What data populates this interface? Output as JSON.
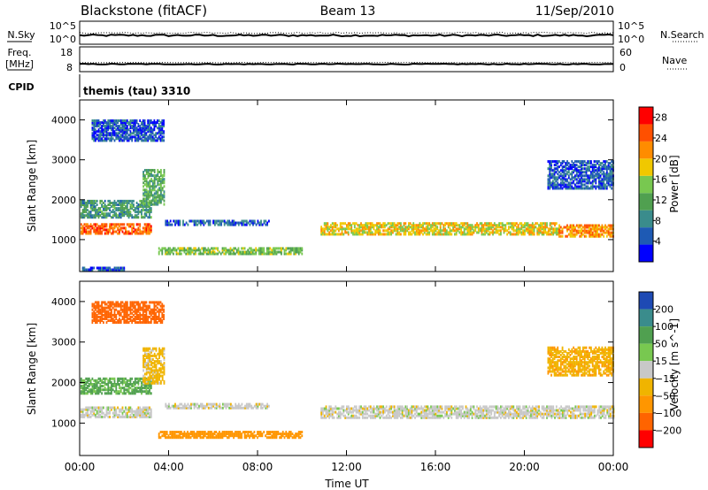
{
  "header": {
    "title": "Blackstone (fitACF)",
    "beam": "Beam 13",
    "date": "11/Sep/2010"
  },
  "noise_panel": {
    "left_label": "N.Sky",
    "right_label": "N.Search",
    "left_ticks": [
      "10^5",
      "10^0"
    ],
    "right_ticks": [
      "10^5",
      "10^0"
    ]
  },
  "freq_panel": {
    "left_label": "Freq.",
    "left_unit": "[MHz]",
    "right_label": "Nave",
    "left_ticks": [
      "18",
      "8"
    ],
    "right_ticks": [
      "60",
      "0"
    ]
  },
  "cpid": {
    "label": "CPID",
    "value": "themis (tau) 3310"
  },
  "colors": {
    "power": [
      "#0000ff",
      "#1e5ab4",
      "#3a8c8c",
      "#50a050",
      "#78c850",
      "#f0c800",
      "#ff8c00",
      "#ff5000",
      "#ff0000"
    ],
    "velocity_neg": [
      "#ff0000",
      "#ff6400",
      "#ff9600",
      "#f0b400",
      "#c8c8c8"
    ],
    "velocity_pos": [
      "#c8c8c8",
      "#78c850",
      "#50a050",
      "#3a8c8c",
      "#1e4ab4"
    ],
    "ground": "#b4b4b4"
  },
  "chart_data": [
    {
      "type": "heatmap",
      "parameter": "power",
      "ylabel": "Slant Range [km]",
      "ylim": [
        200,
        4500
      ],
      "yticks": [
        "1000",
        "2000",
        "3000",
        "4000"
      ],
      "xticks": [
        "00:00",
        "04:00",
        "08:00",
        "12:00",
        "16:00",
        "20:00",
        "00:00"
      ],
      "colorbar": {
        "label": "Power [dB]",
        "ticks": [
          "4",
          "8",
          "12",
          "16",
          "20",
          "24",
          "28"
        ],
        "range": [
          0,
          30
        ]
      },
      "regions": [
        {
          "t0": 0.0,
          "t1": 3.2,
          "r_center": 1250,
          "r_width": 260,
          "value": 24
        },
        {
          "t0": 0.0,
          "t1": 3.2,
          "r_center": 1750,
          "r_width": 450,
          "value": 10
        },
        {
          "t0": 2.8,
          "t1": 3.8,
          "r_center": 2300,
          "r_width": 900,
          "value": 12
        },
        {
          "t0": 0.5,
          "t1": 3.8,
          "r_center": 3700,
          "r_width": 500,
          "value": 5
        },
        {
          "t0": 3.5,
          "t1": 10.0,
          "r_center": 700,
          "r_width": 180,
          "value": 14
        },
        {
          "t0": 3.8,
          "t1": 8.5,
          "r_center": 1400,
          "r_width": 120,
          "value": 6
        },
        {
          "t0": 10.8,
          "t1": 21.5,
          "r_center": 1250,
          "r_width": 300,
          "value": 18
        },
        {
          "t0": 21.5,
          "t1": 24.0,
          "r_center": 1200,
          "r_width": 300,
          "value": 22
        },
        {
          "t0": 21.0,
          "t1": 24.0,
          "r_center": 2600,
          "r_width": 700,
          "value": 5
        },
        {
          "t0": 0.0,
          "t1": 2.0,
          "r_center": 250,
          "r_width": 80,
          "value": 5
        }
      ]
    },
    {
      "type": "heatmap",
      "parameter": "velocity",
      "ylabel": "Slant Range [km]",
      "ylim": [
        200,
        4500
      ],
      "yticks": [
        "1000",
        "2000",
        "3000",
        "4000"
      ],
      "xticks": [
        "00:00",
        "04:00",
        "08:00",
        "12:00",
        "16:00",
        "20:00",
        "00:00"
      ],
      "xlabel": "Time UT",
      "colorbar": {
        "label": "Velocity [m s^-1]",
        "ticks": [
          "200",
          "100",
          "50",
          "15",
          "-15",
          "-50",
          "-100",
          "-200"
        ],
        "range": [
          -250,
          250
        ]
      },
      "regions": [
        {
          "t0": 0.0,
          "t1": 3.2,
          "r_center": 1250,
          "r_width": 260,
          "value": 0
        },
        {
          "t0": 0.0,
          "t1": 3.2,
          "r_center": 1900,
          "r_width": 400,
          "value": 60
        },
        {
          "t0": 2.8,
          "t1": 3.8,
          "r_center": 2400,
          "r_width": 900,
          "value": -30
        },
        {
          "t0": 0.5,
          "t1": 3.8,
          "r_center": 3700,
          "r_width": 500,
          "value": -180
        },
        {
          "t0": 3.5,
          "t1": 10.0,
          "r_center": 700,
          "r_width": 180,
          "value": -70
        },
        {
          "t0": 3.8,
          "t1": 8.5,
          "r_center": 1400,
          "r_width": 120,
          "value": 0
        },
        {
          "t0": 10.8,
          "t1": 24.0,
          "r_center": 1250,
          "r_width": 300,
          "value": 0
        },
        {
          "t0": 21.0,
          "t1": 24.0,
          "r_center": 2500,
          "r_width": 700,
          "value": -40
        }
      ]
    }
  ]
}
